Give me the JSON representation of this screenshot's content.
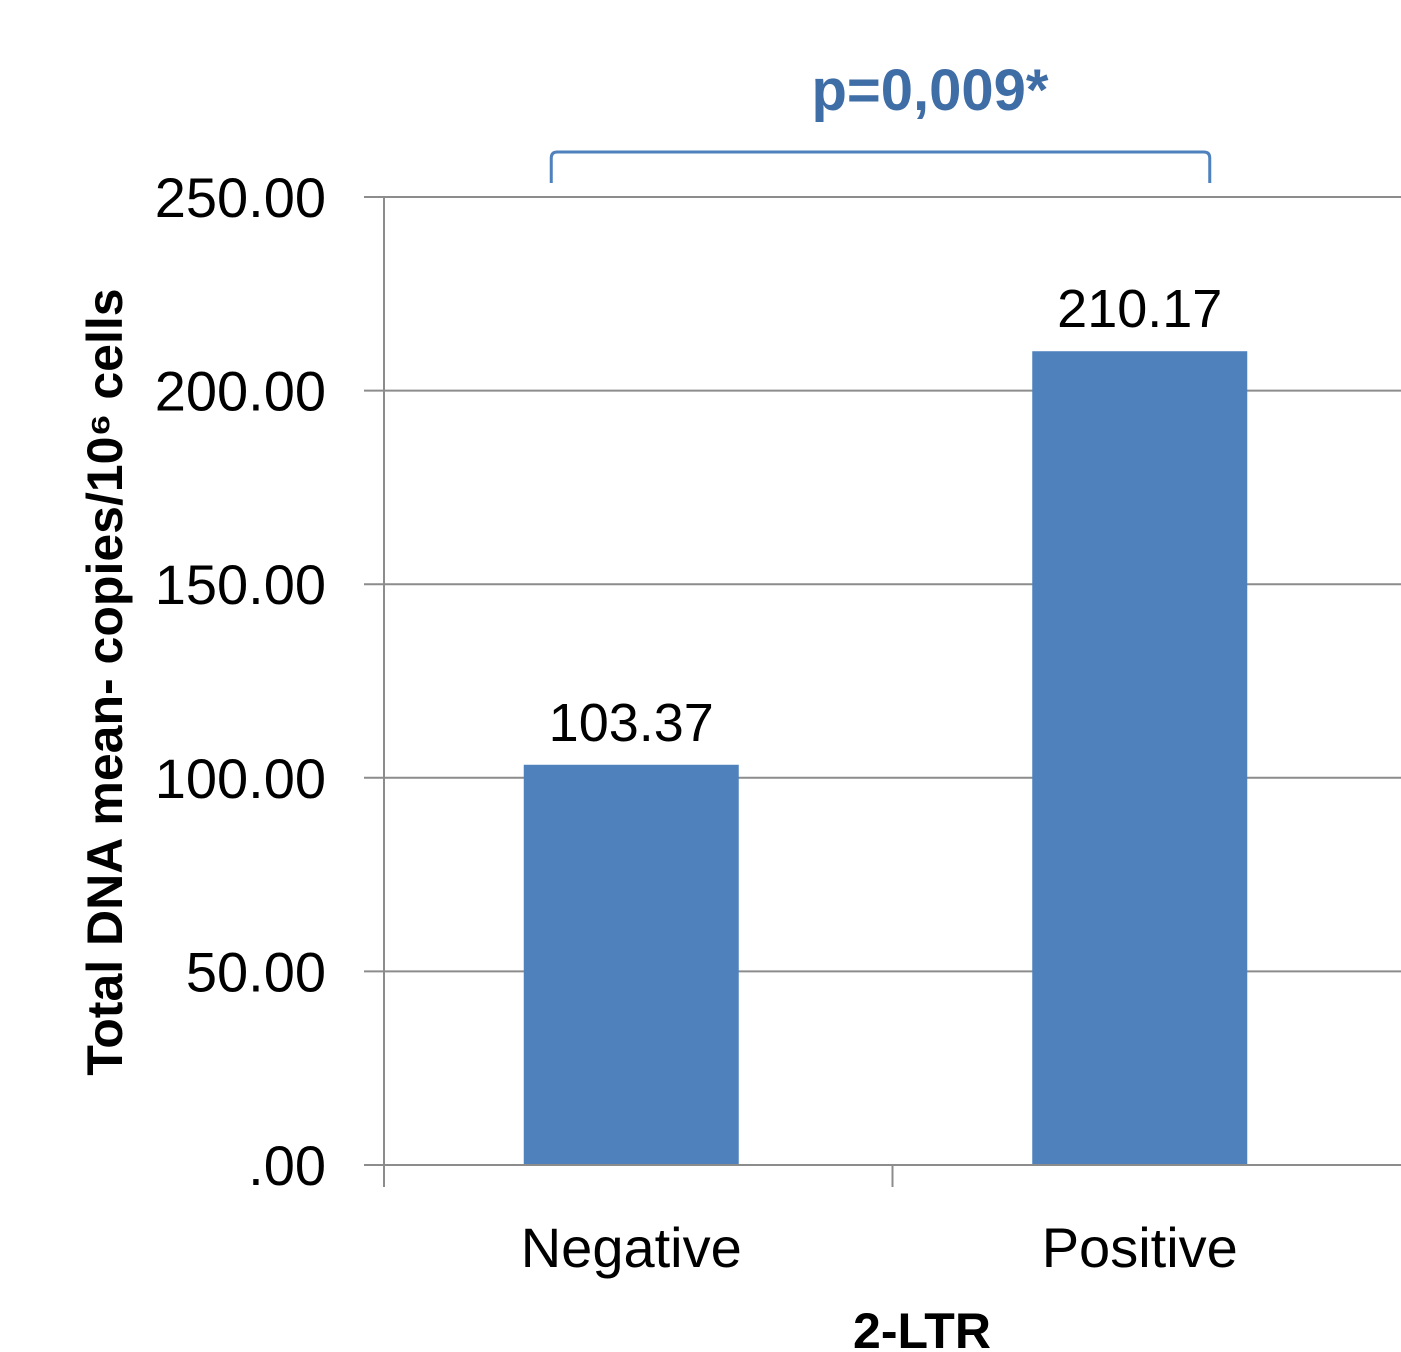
{
  "chart_data": {
    "type": "bar",
    "categories": [
      "Negative",
      "Positive"
    ],
    "values": [
      103.37,
      210.17
    ],
    "value_labels": [
      "103.37",
      "210.17"
    ],
    "title": "",
    "xlabel": "2-LTR",
    "ylabel": "Total DNA mean- copies/10⁶ cells",
    "ylim": [
      0,
      250
    ],
    "yticks": [
      0,
      50,
      100,
      150,
      200,
      250
    ],
    "ytick_labels": [
      ".00",
      "50.00",
      "100.00",
      "150.00",
      "200.00",
      "250.00"
    ],
    "grid": true,
    "legend": "none",
    "annotation": {
      "text": "p=0,009*",
      "between": [
        "Negative",
        "Positive"
      ]
    },
    "colors": {
      "bar": "#4F81BD",
      "annotation": "#3F6DA6",
      "grid": "#8C8C8C"
    }
  }
}
